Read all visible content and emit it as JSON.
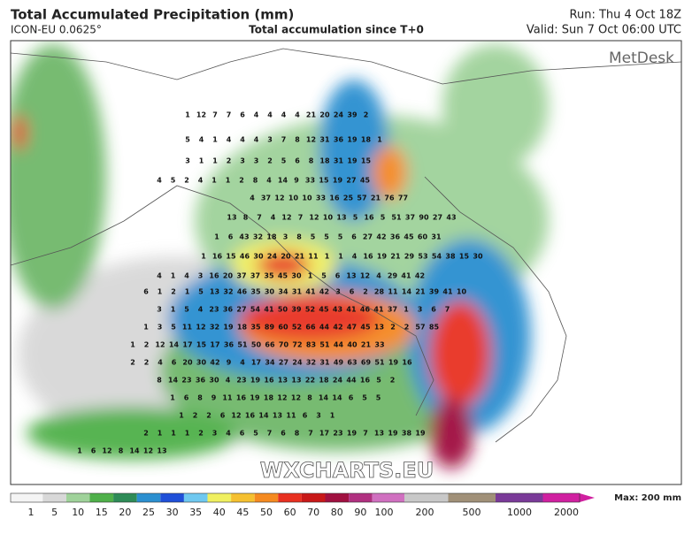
{
  "header": {
    "title": "Total Accumulated Precipitation (mm)",
    "model": "ICON-EU 0.0625°",
    "subtitle": "Total accumulation since T+0",
    "run": "Run: Thu 4 Oct 18Z",
    "valid": "Valid: Sun 7 Oct 06:00 UTC"
  },
  "map": {
    "logo": "MetDesk",
    "watermark": "WXCHARTS.EU",
    "labels": [
      [
        1,
        12,
        7,
        7,
        6,
        4,
        4,
        4,
        4,
        21,
        20,
        24,
        39,
        2
      ],
      [
        5,
        4,
        1,
        4,
        4,
        4,
        3,
        7,
        8,
        12,
        31,
        36,
        19,
        18,
        1
      ],
      [
        3,
        1,
        1,
        2,
        3,
        3,
        2,
        5,
        6,
        8,
        18,
        31,
        19,
        15
      ],
      [
        4,
        5,
        2,
        4,
        1,
        1,
        2,
        8,
        4,
        14,
        9,
        33,
        15,
        19,
        27,
        45
      ],
      [
        4,
        37,
        12,
        10,
        10,
        33,
        16,
        25,
        57,
        21,
        76,
        77
      ],
      [
        13,
        8,
        7,
        4,
        12,
        7,
        12,
        10,
        13,
        5,
        16,
        5,
        51,
        37,
        90,
        27,
        43
      ],
      [
        1,
        6,
        43,
        32,
        18,
        3,
        8,
        5,
        5,
        5,
        6,
        27,
        42,
        36,
        45,
        60,
        31
      ],
      [
        1,
        16,
        15,
        46,
        30,
        24,
        20,
        21,
        11,
        1,
        1,
        4,
        16,
        19,
        21,
        29,
        53,
        54,
        38,
        15,
        30
      ],
      [
        4,
        1,
        4,
        3,
        16,
        20,
        37,
        37,
        35,
        45,
        30,
        1,
        5,
        6,
        13,
        12,
        4,
        29,
        41,
        42
      ],
      [
        6,
        1,
        2,
        1,
        5,
        13,
        32,
        46,
        35,
        30,
        34,
        31,
        41,
        42,
        3,
        6,
        2,
        28,
        11,
        14,
        21,
        39,
        41,
        10
      ],
      [
        3,
        1,
        5,
        4,
        23,
        36,
        27,
        54,
        41,
        50,
        39,
        52,
        45,
        43,
        41,
        46,
        41,
        37,
        1,
        3,
        6,
        7
      ],
      [
        1,
        3,
        5,
        11,
        12,
        32,
        19,
        18,
        35,
        89,
        60,
        52,
        66,
        44,
        42,
        47,
        45,
        13,
        2,
        2,
        57,
        85
      ],
      [
        1,
        2,
        12,
        14,
        17,
        15,
        17,
        36,
        51,
        50,
        66,
        70,
        72,
        83,
        51,
        44,
        40,
        21,
        33
      ],
      [
        2,
        2,
        4,
        6,
        20,
        30,
        42,
        9,
        4,
        17,
        34,
        27,
        24,
        32,
        31,
        49,
        63,
        69,
        51,
        19,
        16
      ],
      [
        8,
        14,
        23,
        36,
        30,
        4,
        23,
        19,
        16,
        13,
        13,
        22,
        18,
        24,
        44,
        16,
        5,
        2
      ],
      [
        1,
        6,
        8,
        9,
        11,
        16,
        19,
        18,
        12,
        12,
        8,
        14,
        14,
        6,
        5,
        5
      ],
      [
        1,
        2,
        2,
        6,
        12,
        16,
        14,
        13,
        11,
        6,
        3,
        1
      ],
      [
        2,
        1,
        1,
        1,
        2,
        3,
        4,
        6,
        5,
        7,
        6,
        8,
        7,
        17,
        23,
        19,
        7,
        13,
        19,
        38,
        19
      ],
      [
        1,
        6,
        12,
        8,
        14,
        12,
        13
      ]
    ]
  },
  "legend": {
    "max": "Max: 200 mm",
    "ticks": [
      1,
      5,
      10,
      15,
      20,
      25,
      30,
      35,
      40,
      45,
      50,
      60,
      70,
      80,
      90,
      100,
      200,
      500,
      1000,
      2000
    ],
    "colors": [
      "#f4f4f4",
      "#d8d8d8",
      "#9fd29a",
      "#4fb04a",
      "#2e8b57",
      "#2b8fd0",
      "#1f4fd8",
      "#6fc8f0",
      "#f0f060",
      "#f5c030",
      "#f58a20",
      "#e83020",
      "#c81818",
      "#a01040",
      "#b03080",
      "#d070c0",
      "#c8c8c8",
      "#a09078",
      "#7a3a98",
      "#d020a0"
    ]
  }
}
